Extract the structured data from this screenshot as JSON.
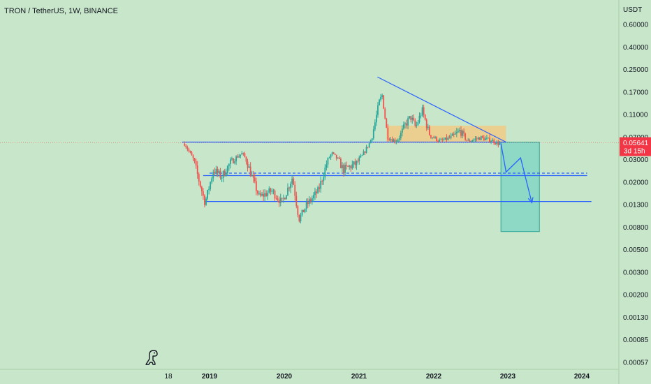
{
  "header": {
    "title": "TRON / TetherUS, 1W, BINANCE"
  },
  "colors": {
    "background": "#c8e6c9",
    "up": "#26a69a",
    "down": "#ef5350",
    "trendline": "#2962ff",
    "consolidation_box": "#f5c77e",
    "target_box": "#7fd6c4",
    "price_badge": "#f23645"
  },
  "chart_data": {
    "type": "candlestick",
    "scale": "log",
    "currency_label": "USDT",
    "y_ticks": [
      "0.60000",
      "0.40000",
      "0.25000",
      "0.17000",
      "0.11000",
      "0.07000",
      "0.03000",
      "0.02000",
      "0.01300",
      "0.00800",
      "0.00500",
      "0.00300",
      "0.00200",
      "0.00130",
      "0.00085",
      "0.00057"
    ],
    "x_ticks": [
      "18",
      "2019",
      "2020",
      "2021",
      "2022",
      "2023",
      "2024"
    ],
    "last_price": "0.05641",
    "countdown": "3d 15h",
    "price_path": [
      [
        "2018-09-01",
        0.055
      ],
      [
        "2018-10-15",
        0.03
      ],
      [
        "2018-12-10",
        0.0135
      ],
      [
        "2019-01-20",
        0.025
      ],
      [
        "2019-03-01",
        0.022
      ],
      [
        "2019-04-10",
        0.028
      ],
      [
        "2019-06-10",
        0.038
      ],
      [
        "2019-07-15",
        0.025
      ],
      [
        "2019-09-01",
        0.015
      ],
      [
        "2019-11-01",
        0.017
      ],
      [
        "2019-12-20",
        0.0135
      ],
      [
        "2020-02-10",
        0.022
      ],
      [
        "2020-03-13",
        0.0095
      ],
      [
        "2020-04-20",
        0.013
      ],
      [
        "2020-06-15",
        0.017
      ],
      [
        "2020-08-20",
        0.038
      ],
      [
        "2020-10-15",
        0.025
      ],
      [
        "2020-12-20",
        0.028
      ],
      [
        "2021-01-15",
        0.034
      ],
      [
        "2021-02-20",
        0.055
      ],
      [
        "2021-04-10",
        0.14
      ],
      [
        "2021-04-25",
        0.16
      ],
      [
        "2021-05-20",
        0.07
      ],
      [
        "2021-06-30",
        0.06
      ],
      [
        "2021-08-15",
        0.09
      ],
      [
        "2021-09-10",
        0.105
      ],
      [
        "2021-10-05",
        0.085
      ],
      [
        "2021-11-05",
        0.12
      ],
      [
        "2021-12-10",
        0.075
      ],
      [
        "2022-02-01",
        0.06
      ],
      [
        "2022-04-05",
        0.07
      ],
      [
        "2022-05-10",
        0.08
      ],
      [
        "2022-06-18",
        0.06
      ],
      [
        "2022-08-15",
        0.068
      ],
      [
        "2022-10-10",
        0.062
      ],
      [
        "2022-11-10",
        0.055
      ],
      [
        "2022-11-25",
        0.05641
      ]
    ],
    "annotations": {
      "resistance_line": {
        "from": [
          "2021-04-01",
          0.22
        ],
        "to": [
          "2022-12-20",
          0.058
        ]
      },
      "support_upper": {
        "from": [
          "2018-08-20",
          0.058
        ],
        "to": [
          "2022-12-20",
          0.058
        ]
      },
      "support_mid": {
        "from": [
          "2018-12-01",
          0.0225
        ],
        "to": [
          "2024-01-20",
          0.0225
        ]
      },
      "support_mid_dashed": {
        "from": [
          "2019-01-01",
          0.0235
        ],
        "to": [
          "2024-01-20",
          0.0235
        ]
      },
      "support_low": {
        "from": [
          "2018-12-10",
          0.0138
        ],
        "to": [
          "2024-02-10",
          0.0138
        ]
      },
      "consolidation_box": {
        "from": [
          "2021-05-15",
          0.088
        ],
        "to": [
          "2022-12-20",
          0.058
        ]
      },
      "target_box": {
        "from": [
          "2022-11-25",
          0.058
        ],
        "to": [
          "2023-06-01",
          0.0073
        ]
      },
      "projection_path": [
        [
          "2022-11-25",
          0.055
        ],
        [
          "2022-12-20",
          0.024
        ],
        [
          "2023-03-01",
          0.032
        ],
        [
          "2023-04-25",
          0.0135
        ]
      ]
    }
  }
}
